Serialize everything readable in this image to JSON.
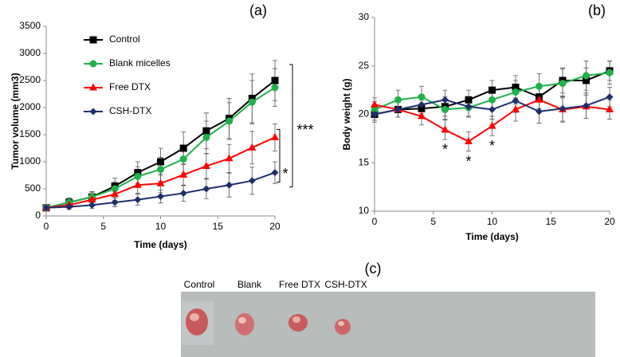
{
  "chart_data": [
    {
      "type": "line",
      "panel_label": "(a)",
      "xlabel": "Time (days)",
      "ylabel": "Tumor volume (mm3)",
      "x": [
        0,
        2,
        4,
        6,
        8,
        10,
        12,
        14,
        16,
        18,
        20
      ],
      "xlim": [
        0,
        20
      ],
      "xticks": [
        0,
        5,
        10,
        15,
        20
      ],
      "ylim": [
        0,
        3500
      ],
      "yticks": [
        0,
        500,
        1000,
        1500,
        2000,
        2500,
        3000,
        3500
      ],
      "legend": "upper left",
      "grid": false,
      "series": [
        {
          "name": "Control",
          "color": "#000000",
          "marker": "square",
          "values": [
            150,
            250,
            350,
            550,
            800,
            1000,
            1250,
            1570,
            1800,
            2170,
            2500
          ],
          "errors": [
            50,
            80,
            100,
            150,
            200,
            250,
            300,
            330,
            370,
            450,
            370
          ]
        },
        {
          "name": "Blank micelles",
          "color": "#1fb24a",
          "marker": "circle",
          "values": [
            150,
            250,
            350,
            500,
            730,
            860,
            1050,
            1450,
            1750,
            2100,
            2370
          ],
          "errors": [
            40,
            70,
            90,
            130,
            180,
            220,
            260,
            300,
            340,
            400,
            350
          ]
        },
        {
          "name": "Free DTX",
          "color": "#ff0000",
          "marker": "triangle",
          "values": [
            150,
            200,
            300,
            400,
            570,
            600,
            760,
            920,
            1060,
            1260,
            1450
          ],
          "errors": [
            40,
            60,
            80,
            110,
            150,
            170,
            200,
            230,
            260,
            300,
            250
          ]
        },
        {
          "name": "CSH-DTX",
          "color": "#1f2f6e",
          "marker": "diamond",
          "values": [
            150,
            170,
            200,
            250,
            300,
            360,
            420,
            500,
            570,
            650,
            800
          ],
          "errors": [
            30,
            50,
            60,
            80,
            100,
            120,
            150,
            180,
            220,
            250,
            200
          ]
        }
      ],
      "annotations": [
        "***",
        "*"
      ]
    },
    {
      "type": "line",
      "panel_label": "(b)",
      "xlabel": "Time (days)",
      "ylabel": "Body weight (g)",
      "x": [
        0,
        2,
        4,
        6,
        8,
        10,
        12,
        14,
        16,
        18,
        20
      ],
      "xlim": [
        0,
        20
      ],
      "xticks": [
        0,
        5,
        10,
        15,
        20
      ],
      "ylim": [
        10,
        30
      ],
      "yticks": [
        10,
        15,
        20,
        25,
        30
      ],
      "grid": false,
      "series": [
        {
          "name": "Control",
          "color": "#000000",
          "marker": "square",
          "values": [
            20,
            20.5,
            20.6,
            20.8,
            21.5,
            22.5,
            22.8,
            21.8,
            23.5,
            23.5,
            24.5
          ],
          "errors": [
            0.8,
            0.8,
            0.9,
            1,
            1,
            1,
            1.2,
            1.2,
            1.3,
            1.3,
            1
          ]
        },
        {
          "name": "Blank micelles",
          "color": "#1fb24a",
          "marker": "circle",
          "values": [
            20.5,
            21.5,
            21.8,
            20.5,
            20.7,
            21.5,
            22.3,
            22.9,
            23.2,
            24,
            24.3
          ],
          "errors": [
            0.8,
            1,
            1.1,
            1,
            1,
            1,
            1.2,
            1.3,
            1.5,
            1.5,
            1.2
          ]
        },
        {
          "name": "Free DTX",
          "color": "#ff0000",
          "marker": "triangle",
          "values": [
            21,
            20.5,
            19.8,
            18.4,
            17.2,
            18.8,
            20.5,
            21.5,
            20.5,
            20.8,
            20.5
          ],
          "errors": [
            0.7,
            0.8,
            0.9,
            1,
            1,
            1,
            1.2,
            1.2,
            1.3,
            1.2,
            1
          ]
        },
        {
          "name": "CSH-DTX",
          "color": "#1f2f6e",
          "marker": "diamond",
          "values": [
            20,
            20.5,
            21,
            21.5,
            20.8,
            20.5,
            21.4,
            20.3,
            20.6,
            20.9,
            21.8
          ],
          "errors": [
            0.6,
            0.8,
            0.9,
            1,
            1,
            1,
            1.2,
            1.2,
            1.3,
            1.3,
            1
          ]
        }
      ],
      "annotations": [
        "*",
        "*",
        "*"
      ]
    }
  ],
  "photo": {
    "label": "(c)",
    "captions": [
      "Control",
      "Blank",
      "Free DTX",
      "CSH-DTX"
    ]
  }
}
